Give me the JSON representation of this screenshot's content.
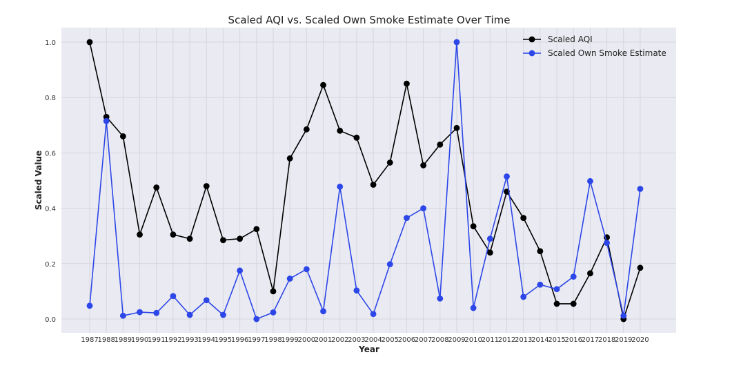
{
  "chart_data": {
    "type": "line",
    "title": "Scaled AQI vs. Scaled Own Smoke Estimate Over Time",
    "xlabel": "Year",
    "ylabel": "Scaled Value",
    "x": [
      "1987",
      "1988",
      "1989",
      "1990",
      "1991",
      "1992",
      "1993",
      "1994",
      "1995",
      "1996",
      "1997",
      "1998",
      "1999",
      "2000",
      "2001",
      "2002",
      "2003",
      "2004",
      "2005",
      "2006",
      "2007",
      "2008",
      "2009",
      "2010",
      "2011",
      "2012",
      "2013",
      "2014",
      "2015",
      "2016",
      "2017",
      "2018",
      "2019",
      "2020"
    ],
    "ylim": [
      -0.02,
      1.05
    ],
    "yticks": [
      "0.0",
      "0.2",
      "0.4",
      "0.6",
      "0.8",
      "1.0"
    ],
    "grid": true,
    "legend_position": "top-right",
    "series": [
      {
        "name": "Scaled AQI",
        "color": "#000000",
        "values": [
          1.0,
          0.73,
          0.66,
          0.305,
          0.475,
          0.305,
          0.29,
          0.48,
          0.285,
          0.29,
          0.325,
          0.1,
          0.58,
          0.685,
          0.845,
          0.68,
          0.655,
          0.485,
          0.565,
          0.85,
          0.555,
          0.63,
          0.69,
          0.335,
          0.24,
          0.46,
          0.365,
          0.245,
          0.055,
          0.055,
          0.165,
          0.295,
          0.0,
          0.185
        ]
      },
      {
        "name": "Scaled Own Smoke Estimate",
        "color": "#2c46e8",
        "values": [
          0.048,
          0.715,
          0.012,
          0.025,
          0.022,
          0.083,
          0.015,
          0.068,
          0.015,
          0.175,
          0.0,
          0.024,
          0.146,
          0.18,
          0.028,
          0.478,
          0.103,
          0.018,
          0.198,
          0.365,
          0.4,
          0.074,
          1.0,
          0.04,
          0.29,
          0.515,
          0.08,
          0.124,
          0.108,
          0.153,
          0.498,
          0.275,
          0.012,
          0.47
        ]
      }
    ]
  }
}
